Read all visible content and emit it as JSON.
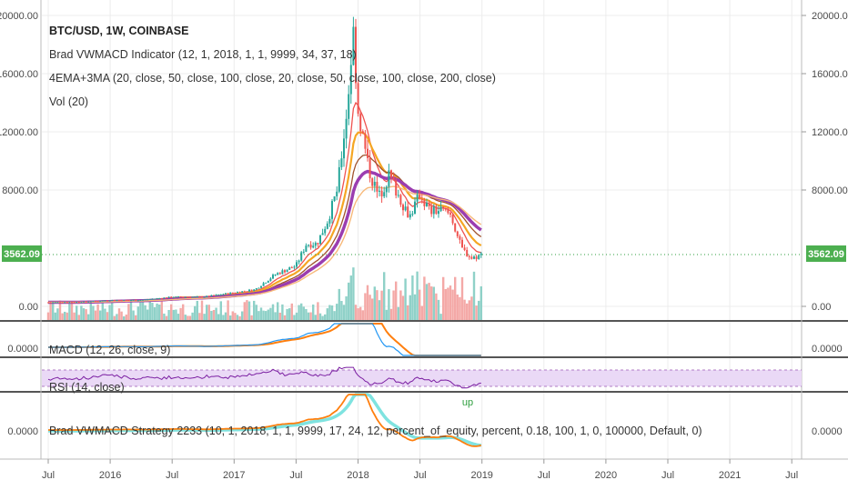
{
  "chart_data": {
    "type": "candlestick",
    "symbol_title": "BTC/USD, 1W, COINBASE",
    "indicators": [
      "Brad VWMACD Indicator (12, 1, 2018, 1, 1, 9999, 34, 37, 18)",
      "4EMA+3MA (20, close, 50, close, 100, close, 20, close, 50, close, 100, close, 200, close)",
      "Vol (20)"
    ],
    "price_axis_ticks": [
      "20000.00",
      "16000.00",
      "12000.00",
      "8000.00",
      "0.00"
    ],
    "price_tick_values": [
      20000,
      16000,
      12000,
      8000,
      0
    ],
    "ylim": [
      -600,
      20600
    ],
    "last_price_label": "3562.09",
    "last_price": 3562.09,
    "x_axis_labels": [
      "Jul",
      "2016",
      "Jul",
      "2017",
      "Jul",
      "2018",
      "Jul",
      "2019",
      "Jul",
      "2020",
      "Jul",
      "2021",
      "Jul"
    ],
    "x_axis_dates": [
      "2015-07",
      "2016-01",
      "2016-07",
      "2017-01",
      "2017-07",
      "2018-01",
      "2018-07",
      "2019-01",
      "2019-07",
      "2020-01",
      "2020-07",
      "2021-01",
      "2021-07"
    ],
    "close_series_approx": [
      [
        "2015-07",
        280
      ],
      [
        "2015-10",
        300
      ],
      [
        "2016-01",
        420
      ],
      [
        "2016-04",
        440
      ],
      [
        "2016-07",
        650
      ],
      [
        "2016-10",
        650
      ],
      [
        "2017-01",
        950
      ],
      [
        "2017-03",
        1150
      ],
      [
        "2017-05",
        2200
      ],
      [
        "2017-06",
        2500
      ],
      [
        "2017-07",
        2800
      ],
      [
        "2017-08",
        4300
      ],
      [
        "2017-09",
        4300
      ],
      [
        "2017-10",
        5800
      ],
      [
        "2017-11",
        8000
      ],
      [
        "2017-12",
        14000
      ],
      [
        "2017-12-17",
        19000
      ],
      [
        "2018-01",
        13500
      ],
      [
        "2018-02",
        9500
      ],
      [
        "2018-03",
        7500
      ],
      [
        "2018-04",
        9000
      ],
      [
        "2018-05",
        7500
      ],
      [
        "2018-06",
        6200
      ],
      [
        "2018-07",
        7700
      ],
      [
        "2018-08",
        6500
      ],
      [
        "2018-09",
        6600
      ],
      [
        "2018-10",
        6300
      ],
      [
        "2018-11",
        4000
      ],
      [
        "2018-12",
        3300
      ],
      [
        "2019-01",
        3562
      ]
    ],
    "panes": [
      {
        "name": "MACD",
        "label": "MACD (12, 26, close, 9)",
        "axis_tick": "0.0000"
      },
      {
        "name": "RSI",
        "label": "RSI (14, close)"
      },
      {
        "name": "Strategy",
        "label": "Brad VWMACD Strategy 2233 (10, 1, 2018, 1, 1, 9999, 17, 24, 12, percent_of_equity, percent, 0.18, 100, 1, 0, 100000, Default, 0)",
        "axis_tick": "0.0000",
        "signal": "up"
      }
    ],
    "colors": {
      "up": "#26a69a",
      "down": "#ef5350",
      "ema_purple": "#9b3db0",
      "ema_orange": "#f5a623",
      "ema_brown": "#a0522d",
      "price_tag": "#4caf50",
      "macd": "#2196f3",
      "signal": "#ff7f0e",
      "rsi": "#7b1fa2",
      "rsi_band": "#ead9f6"
    }
  }
}
